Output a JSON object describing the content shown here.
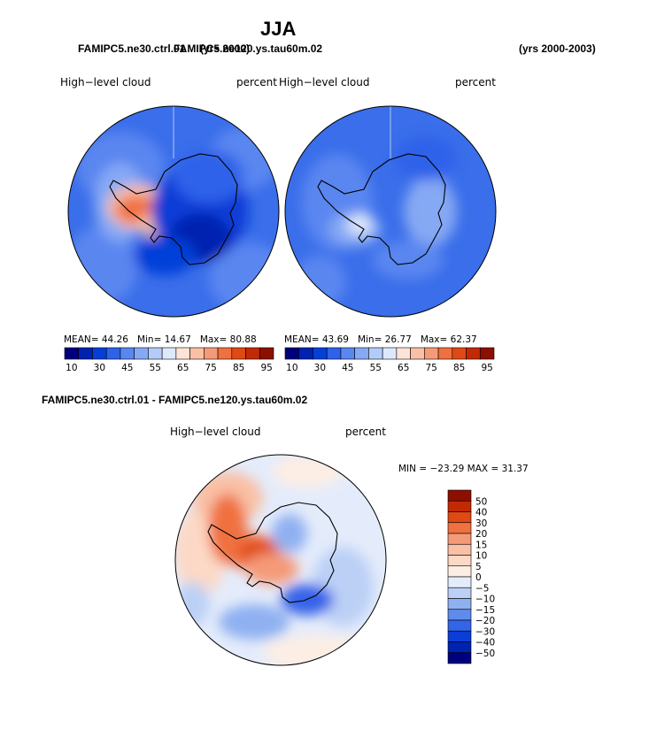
{
  "page": {
    "season": "JJA",
    "header_left_a": "FAMIPC5.ne30.ctrl.01",
    "header_left_b": "FAMIPC5.ne120.ys.tau60m.02",
    "header_left_a_years": "(yrs 2000)",
    "header_right_years": "(yrs 2000-2003)"
  },
  "chart_data": [
    {
      "type": "heatmap",
      "projection": "south polar stereographic",
      "title": "High−level cloud",
      "units": "percent",
      "stats": {
        "mean_label": "MEAN=",
        "mean": "44.26",
        "min_label": "Min=",
        "min": "14.67",
        "max_label": "Max=",
        "max": "80.88"
      },
      "colorbar": {
        "orientation": "horizontal",
        "tick_labels": [
          "10",
          "30",
          "45",
          "55",
          "65",
          "75",
          "85",
          "95"
        ],
        "colors": [
          "#00007f",
          "#0022b0",
          "#0440d8",
          "#2f62ea",
          "#5a86f0",
          "#86a9f4",
          "#b3cbf8",
          "#dde8fc",
          "#fde4d7",
          "#f9c0a5",
          "#f59a77",
          "#f0713f",
          "#e04914",
          "#c22a06",
          "#8c0f00"
        ]
      }
    },
    {
      "type": "heatmap",
      "projection": "south polar stereographic",
      "title": "High−level cloud",
      "units": "percent",
      "stats": {
        "mean_label": "MEAN=",
        "mean": "43.69",
        "min_label": "Min=",
        "min": "26.77",
        "max_label": "Max=",
        "max": "62.37"
      },
      "colorbar": {
        "orientation": "horizontal",
        "tick_labels": [
          "10",
          "30",
          "45",
          "55",
          "65",
          "75",
          "85",
          "95"
        ],
        "colors": [
          "#00007f",
          "#0022b0",
          "#0440d8",
          "#2f62ea",
          "#5a86f0",
          "#86a9f4",
          "#b3cbf8",
          "#dde8fc",
          "#fde4d7",
          "#f9c0a5",
          "#f59a77",
          "#f0713f",
          "#e04914",
          "#c22a06",
          "#8c0f00"
        ]
      }
    },
    {
      "type": "heatmap",
      "projection": "south polar stereographic",
      "panel_title": "FAMIPC5.ne30.ctrl.01 - FAMIPC5.ne120.ys.tau60m.02",
      "title": "High−level cloud",
      "units": "percent",
      "stats": {
        "text": "MIN = −23.29  MAX =   31.37"
      },
      "colorbar": {
        "orientation": "vertical",
        "tick_labels": [
          "50",
          "40",
          "30",
          "20",
          "15",
          "10",
          "5",
          "0",
          "−5",
          "−10",
          "−15",
          "−20",
          "−30",
          "−40",
          "−50"
        ],
        "colors": [
          "#8c0f00",
          "#c22a06",
          "#e04914",
          "#f0713f",
          "#f59a77",
          "#f9c0a5",
          "#fcd9c6",
          "#fdeee4",
          "#e4ecfb",
          "#bcd0f6",
          "#8fb0f1",
          "#5f8bec",
          "#3464e8",
          "#0b3ed7",
          "#0022b0",
          "#00007f"
        ]
      }
    }
  ]
}
